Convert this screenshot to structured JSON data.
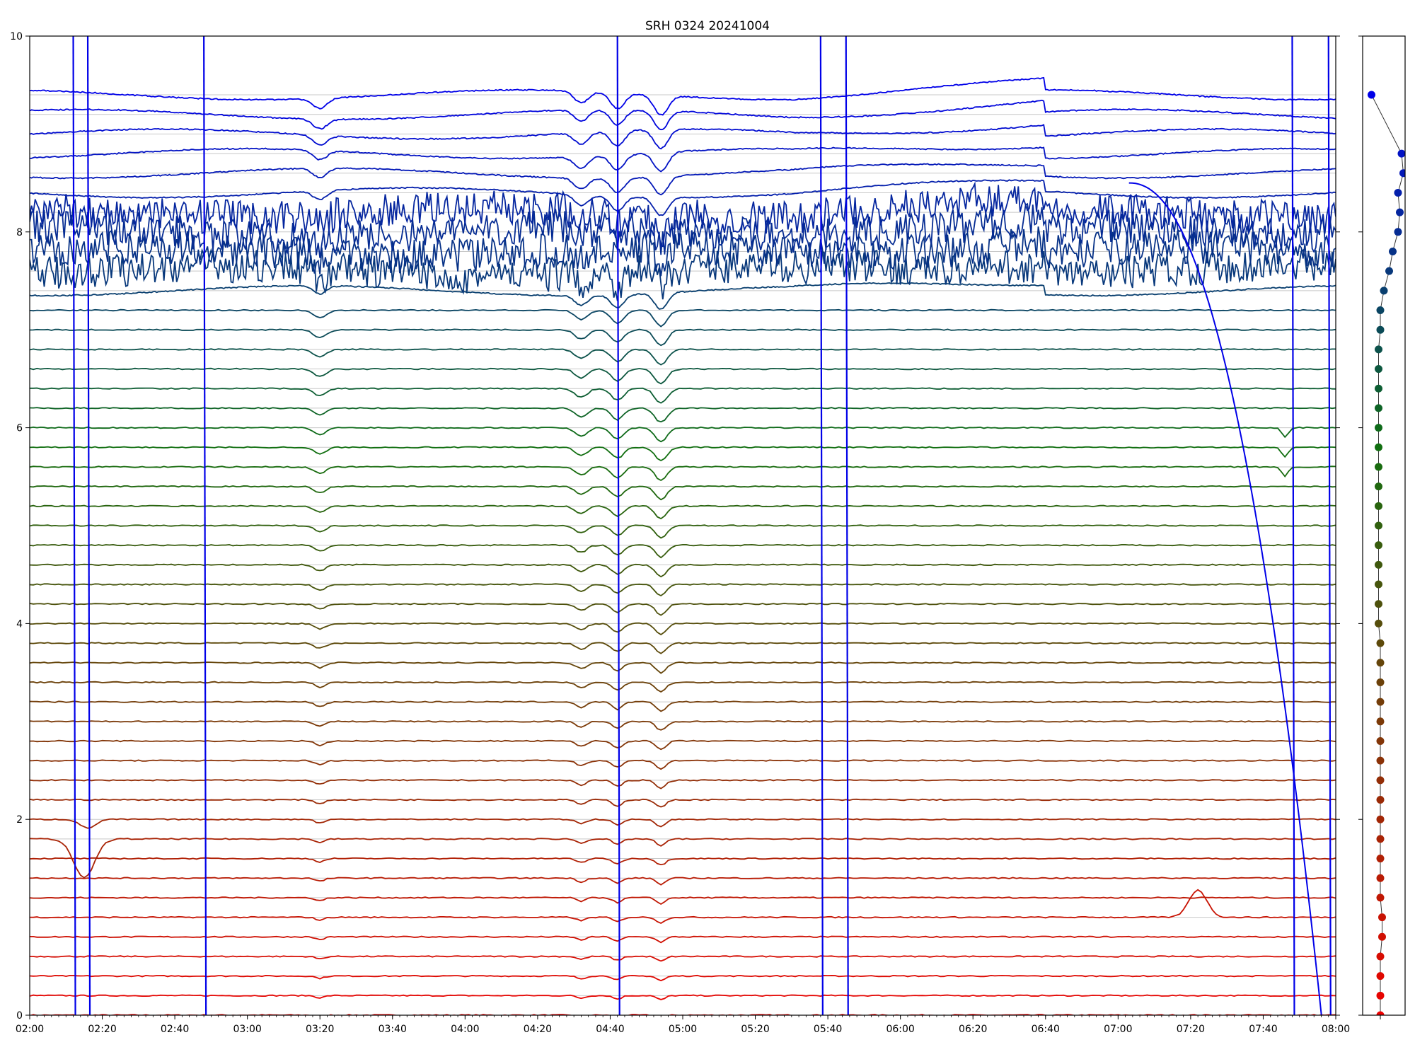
{
  "chart_data": [
    {
      "type": "line",
      "title": "SRH 0324 20241004",
      "xlabel": "",
      "ylabel": "",
      "x_range": [
        "02:00",
        "08:00"
      ],
      "ylim": [
        0,
        10
      ],
      "x_ticks": [
        "02:00",
        "02:20",
        "02:40",
        "03:00",
        "03:20",
        "03:40",
        "04:00",
        "04:20",
        "04:40",
        "05:00",
        "05:20",
        "05:40",
        "06:00",
        "06:20",
        "06:40",
        "07:00",
        "07:20",
        "07:40",
        "08:00"
      ],
      "y_ticks": [
        "0",
        "2",
        "4",
        "6",
        "8",
        "10"
      ],
      "grid": "horizontal lines at each series baseline (step 0.2)",
      "legend": "none",
      "series_count": 48,
      "series_baseline_start": 0.0,
      "series_baseline_step": 0.2,
      "common_dips": [
        {
          "time": "04:42",
          "depth": 0.08
        },
        {
          "time": "04:54",
          "depth": 0.1
        },
        {
          "time": "03:20",
          "depth": 0.05
        },
        {
          "time": "04:32",
          "depth": 0.06
        }
      ],
      "events": [
        {
          "time": "02:15",
          "note": "deep dip on lower traces (baselines 1.8, 2.0)"
        },
        {
          "time": "07:22",
          "note": "bump on trace at baseline 1.0"
        },
        {
          "time": "07:46",
          "note": "dips on traces above 5.6"
        }
      ],
      "vertical_spikes": [
        "02:12",
        "02:16",
        "02:48",
        "04:42",
        "05:38",
        "05:45",
        "07:48",
        "07:58"
      ],
      "color_gradient": {
        "bottom": "#ee0000",
        "middle": "#107010",
        "top": "#0000e8"
      }
    },
    {
      "type": "scatter",
      "title": "",
      "ylim": [
        0,
        10
      ],
      "y_ticks": [
        "0",
        "2",
        "4",
        "6",
        "8",
        "10"
      ],
      "points": [
        {
          "x": 0.0,
          "y": 0.0
        },
        {
          "x": 0.0,
          "y": 0.2
        },
        {
          "x": 0.0,
          "y": 0.4
        },
        {
          "x": 0.0,
          "y": 0.6
        },
        {
          "x": 0.01,
          "y": 0.8
        },
        {
          "x": 0.01,
          "y": 1.0
        },
        {
          "x": 0.0,
          "y": 1.2
        },
        {
          "x": 0.0,
          "y": 1.4
        },
        {
          "x": 0.0,
          "y": 1.6
        },
        {
          "x": 0.0,
          "y": 1.8
        },
        {
          "x": 0.0,
          "y": 2.0
        },
        {
          "x": 0.0,
          "y": 2.2
        },
        {
          "x": 0.0,
          "y": 2.4
        },
        {
          "x": 0.0,
          "y": 2.6
        },
        {
          "x": 0.0,
          "y": 2.8
        },
        {
          "x": 0.0,
          "y": 3.0
        },
        {
          "x": 0.0,
          "y": 3.2
        },
        {
          "x": 0.0,
          "y": 3.4
        },
        {
          "x": 0.0,
          "y": 3.6
        },
        {
          "x": 0.0,
          "y": 3.8
        },
        {
          "x": -0.01,
          "y": 4.0
        },
        {
          "x": -0.01,
          "y": 4.2
        },
        {
          "x": -0.01,
          "y": 4.4
        },
        {
          "x": -0.01,
          "y": 4.6
        },
        {
          "x": -0.01,
          "y": 4.8
        },
        {
          "x": -0.01,
          "y": 5.0
        },
        {
          "x": -0.01,
          "y": 5.2
        },
        {
          "x": -0.01,
          "y": 5.4
        },
        {
          "x": -0.01,
          "y": 5.6
        },
        {
          "x": -0.01,
          "y": 5.8
        },
        {
          "x": -0.01,
          "y": 6.0
        },
        {
          "x": -0.01,
          "y": 6.2
        },
        {
          "x": -0.01,
          "y": 6.4
        },
        {
          "x": -0.01,
          "y": 6.6
        },
        {
          "x": -0.01,
          "y": 6.8
        },
        {
          "x": 0.0,
          "y": 7.0
        },
        {
          "x": 0.0,
          "y": 7.2
        },
        {
          "x": 0.02,
          "y": 7.4
        },
        {
          "x": 0.05,
          "y": 7.6
        },
        {
          "x": 0.07,
          "y": 7.8
        },
        {
          "x": 0.1,
          "y": 8.0
        },
        {
          "x": 0.11,
          "y": 8.2
        },
        {
          "x": 0.1,
          "y": 8.4
        },
        {
          "x": 0.13,
          "y": 8.6
        },
        {
          "x": 0.12,
          "y": 8.8
        },
        {
          "x": -0.05,
          "y": 9.4
        }
      ],
      "x_range": [
        -0.1,
        0.14
      ]
    }
  ]
}
